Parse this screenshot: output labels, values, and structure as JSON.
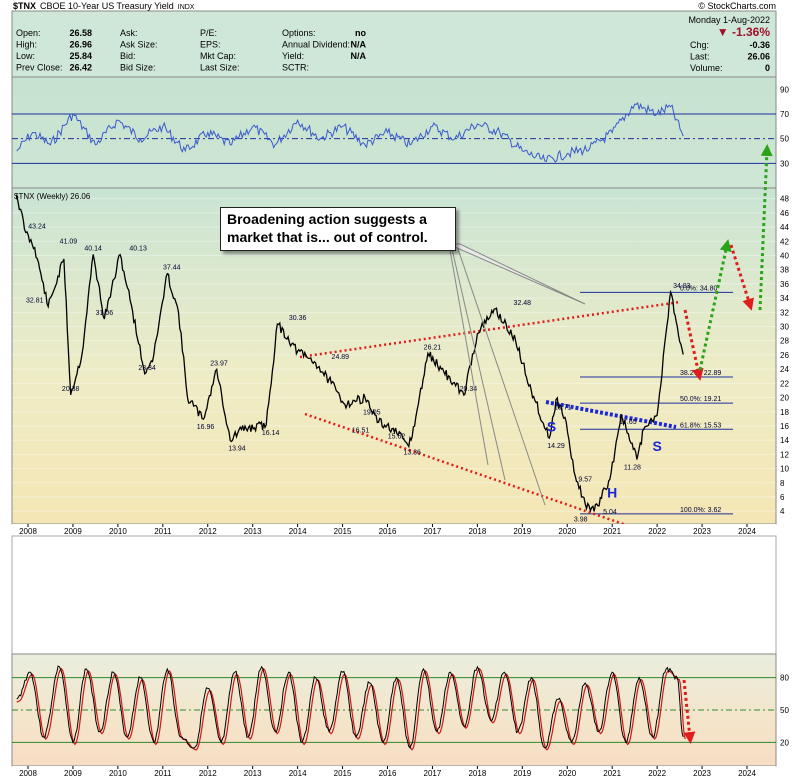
{
  "header": {
    "symbol": "$TNX",
    "name": "CBOE 10-Year US Treasury Yield",
    "exchange": "INDX",
    "brand": "© StockCharts.com",
    "date": "Monday 1-Aug-2022",
    "change_pct": "▼ -1.36%",
    "fields": [
      {
        "label": "Open:",
        "value": "26.58"
      },
      {
        "label": "High:",
        "value": "26.96"
      },
      {
        "label": "Low:",
        "value": "25.84"
      },
      {
        "label": "Prev Close:",
        "value": "26.42"
      },
      {
        "label": "Ask:",
        "value": ""
      },
      {
        "label": "Ask Size:",
        "value": ""
      },
      {
        "label": "Bid:",
        "value": ""
      },
      {
        "label": "Bid Size:",
        "value": ""
      },
      {
        "label": "P/E:",
        "value": ""
      },
      {
        "label": "EPS:",
        "value": ""
      },
      {
        "label": "Mkt Cap:",
        "value": ""
      },
      {
        "label": "Last Size:",
        "value": ""
      },
      {
        "label": "Options:",
        "value": "no"
      },
      {
        "label": "Annual Dividend:",
        "value": "N/A"
      },
      {
        "label": "Yield:",
        "value": "N/A"
      },
      {
        "label": "SCTR:",
        "value": ""
      },
      {
        "label": "Chg:",
        "value": "-0.36"
      },
      {
        "label": "Last:",
        "value": "26.06"
      },
      {
        "label": "Volume:",
        "value": "0"
      }
    ]
  },
  "annotation_text": "Broadening action suggests a market that is... out of control.",
  "chart_data": {
    "type": "line",
    "x_axis_years": [
      "2008",
      "2009",
      "2010",
      "2011",
      "2012",
      "2013",
      "2014",
      "2015",
      "2016",
      "2017",
      "2018",
      "2019",
      "2020",
      "2021",
      "2022",
      "2023",
      "2024"
    ],
    "rsi_panel": {
      "ticks": [
        90,
        70,
        50,
        30
      ],
      "ylim": [
        10,
        100
      ],
      "reference_lines": [
        70,
        50,
        30
      ],
      "x": [
        2007.75,
        2008.1,
        2008.5,
        2009.0,
        2009.5,
        2010.0,
        2010.5,
        2011.0,
        2011.5,
        2012.0,
        2012.5,
        2013.0,
        2013.5,
        2014.0,
        2014.5,
        2015.0,
        2015.5,
        2016.0,
        2016.5,
        2017.0,
        2017.5,
        2018.0,
        2018.5,
        2019.0,
        2019.5,
        2020.0,
        2020.5,
        2021.0,
        2021.5,
        2022.0,
        2022.3,
        2022.58
      ],
      "values": [
        40,
        55,
        45,
        70,
        45,
        65,
        50,
        60,
        40,
        55,
        45,
        60,
        45,
        65,
        50,
        60,
        45,
        55,
        45,
        60,
        50,
        62,
        55,
        40,
        32,
        38,
        42,
        55,
        78,
        70,
        76,
        52
      ]
    },
    "price_panel": {
      "title": "$TNX (Weekly) 26.06",
      "ticks": [
        4,
        6,
        8,
        10,
        12,
        14,
        16,
        18,
        20,
        22,
        24,
        26,
        28,
        30,
        32,
        34,
        36,
        38,
        40,
        42,
        44,
        46,
        48
      ],
      "ylim": [
        2.2,
        49.5
      ],
      "x": [
        2007.75,
        2007.95,
        2008.15,
        2008.45,
        2008.8,
        2008.95,
        2009.2,
        2009.45,
        2009.7,
        2010.05,
        2010.3,
        2010.6,
        2010.8,
        2011.1,
        2011.35,
        2011.55,
        2011.9,
        2012.2,
        2012.5,
        2012.75,
        2013.3,
        2013.55,
        2014.0,
        2014.4,
        2014.75,
        2015.05,
        2015.5,
        2015.8,
        2016.1,
        2016.45,
        2016.55,
        2016.9,
        2017.2,
        2017.7,
        2018.0,
        2018.4,
        2018.85,
        2019.2,
        2019.6,
        2019.75,
        2019.95,
        2020.15,
        2020.4,
        2020.6,
        2020.95,
        2021.2,
        2021.55,
        2021.7,
        2022.0,
        2022.3,
        2022.45,
        2022.58
      ],
      "values": [
        48.5,
        43.24,
        41.09,
        32.81,
        39.5,
        20.38,
        26,
        40.14,
        31.06,
        40.13,
        33,
        23.34,
        26,
        37.44,
        32,
        20,
        16.96,
        23.97,
        13.94,
        15.5,
        16.14,
        30.36,
        26.5,
        24.89,
        22,
        19.05,
        20,
        16.51,
        15.62,
        13.36,
        14.5,
        26.21,
        24,
        20.34,
        29,
        32.48,
        28,
        21,
        14.29,
        19.71,
        17.2,
        9.57,
        5.04,
        3.98,
        8.5,
        17.65,
        11.28,
        15.5,
        17.5,
        34.83,
        30,
        26.06
      ],
      "data_labels": [
        {
          "text": "43.24",
          "x": 2008.2,
          "y": 43.24
        },
        {
          "text": "41.09",
          "x": 2008.9,
          "y": 41.09
        },
        {
          "text": "32.81",
          "x": 2008.15,
          "y": 32.81
        },
        {
          "text": "40.14",
          "x": 2009.45,
          "y": 40.14
        },
        {
          "text": "31.06",
          "x": 2009.7,
          "y": 31.06
        },
        {
          "text": "40.13",
          "x": 2010.45,
          "y": 40.13
        },
        {
          "text": "20.38",
          "x": 2008.95,
          "y": 20.38
        },
        {
          "text": "37.44",
          "x": 2011.2,
          "y": 37.44
        },
        {
          "text": "23.34",
          "x": 2010.65,
          "y": 23.34
        },
        {
          "text": "16.96",
          "x": 2011.95,
          "y": 16.96
        },
        {
          "text": "23.97",
          "x": 2012.25,
          "y": 23.97
        },
        {
          "text": "13.94",
          "x": 2012.65,
          "y": 13.94
        },
        {
          "text": "16.14",
          "x": 2013.4,
          "y": 16.14
        },
        {
          "text": "30.36",
          "x": 2014.0,
          "y": 30.36
        },
        {
          "text": "24.89",
          "x": 2014.95,
          "y": 24.89
        },
        {
          "text": "19.05",
          "x": 2015.65,
          "y": 19.05
        },
        {
          "text": "16.51",
          "x": 2015.4,
          "y": 16.51
        },
        {
          "text": "15.62",
          "x": 2016.2,
          "y": 15.62
        },
        {
          "text": "13.36",
          "x": 2016.55,
          "y": 13.36
        },
        {
          "text": "26.21",
          "x": 2017.0,
          "y": 26.21
        },
        {
          "text": "20.34",
          "x": 2017.8,
          "y": 20.34
        },
        {
          "text": "32.48",
          "x": 2019.0,
          "y": 32.48
        },
        {
          "text": "19.71",
          "x": 2019.9,
          "y": 19.71
        },
        {
          "text": "14.29",
          "x": 2019.75,
          "y": 14.29
        },
        {
          "text": "17.65",
          "x": 2021.35,
          "y": 17.65
        },
        {
          "text": "9.57",
          "x": 2020.4,
          "y": 9.57
        },
        {
          "text": "11.28",
          "x": 2021.45,
          "y": 11.28
        },
        {
          "text": "5.04",
          "x": 2020.95,
          "y": 5.04
        },
        {
          "text": "3.98",
          "x": 2020.3,
          "y": 3.98
        },
        {
          "text": "34.83",
          "x": 2022.55,
          "y": 34.83
        }
      ],
      "fib_levels": [
        {
          "text": "0.0%: 34.80",
          "value": 34.8
        },
        {
          "text": "38.2%: 22.89",
          "value": 22.89
        },
        {
          "text": "50.0%: 19.21",
          "value": 19.21
        },
        {
          "text": "61.8%: 15.53",
          "value": 15.53
        },
        {
          "text": "100.0%: 3.62",
          "value": 3.62
        }
      ],
      "pattern_labels": [
        {
          "text": "S",
          "x": 2019.65,
          "y": 15.2
        },
        {
          "text": "H",
          "x": 2021.0,
          "y": 5.9
        },
        {
          "text": "S",
          "x": 2022.0,
          "y": 12.5
        }
      ]
    },
    "stoch_panel": {
      "ticks": [
        80,
        50,
        20
      ],
      "ylim": [
        0,
        100
      ],
      "reference_lines": [
        80,
        50,
        20
      ],
      "x": [
        2007.75,
        2008.05,
        2008.35,
        2008.7,
        2009.0,
        2009.3,
        2009.6,
        2009.9,
        2010.2,
        2010.5,
        2010.8,
        2011.1,
        2011.4,
        2011.7,
        2012.0,
        2012.3,
        2012.6,
        2012.9,
        2013.2,
        2013.5,
        2013.8,
        2014.1,
        2014.4,
        2014.7,
        2015.0,
        2015.3,
        2015.6,
        2015.9,
        2016.2,
        2016.5,
        2016.8,
        2017.1,
        2017.4,
        2017.7,
        2018.0,
        2018.3,
        2018.6,
        2018.9,
        2019.2,
        2019.5,
        2019.8,
        2020.1,
        2020.4,
        2020.7,
        2021.0,
        2021.3,
        2021.6,
        2021.9,
        2022.2,
        2022.45,
        2022.58
      ],
      "values": [
        60,
        85,
        25,
        90,
        20,
        88,
        30,
        85,
        25,
        80,
        20,
        88,
        25,
        15,
        70,
        20,
        85,
        25,
        90,
        30,
        85,
        20,
        80,
        30,
        85,
        25,
        75,
        20,
        80,
        15,
        88,
        30,
        85,
        35,
        90,
        40,
        85,
        30,
        80,
        15,
        60,
        20,
        75,
        30,
        85,
        20,
        80,
        25,
        88,
        80,
        25
      ]
    }
  }
}
